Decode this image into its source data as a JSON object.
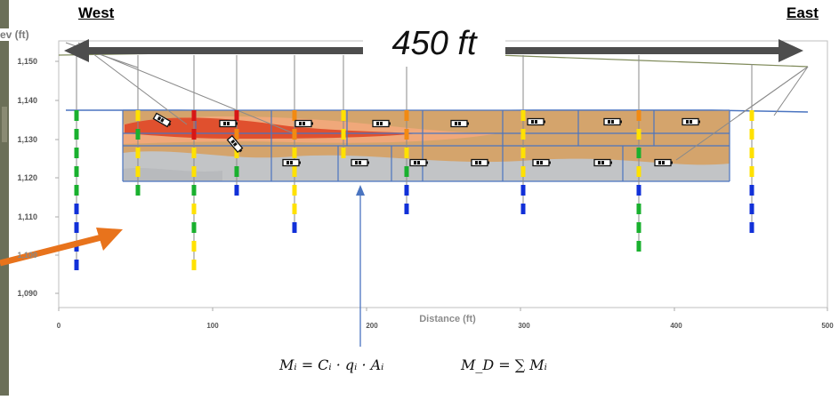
{
  "header": {
    "west_label": "West",
    "east_label": "East",
    "span_label": "450 ft"
  },
  "axes": {
    "y_label": "ev (ft)",
    "x_label": "Distance (ft)",
    "y_ticks": [
      "1,150",
      "1,140",
      "1,130",
      "1,120",
      "1,110",
      "1,100",
      "1,090"
    ],
    "x_ticks": [
      "0",
      "100",
      "200",
      "300",
      "400",
      "500"
    ]
  },
  "equations": {
    "mass": "Mᵢ = Cᵢ · qᵢ · Aᵢ",
    "sum": "M_D = ∑ Mᵢ"
  },
  "colors": {
    "arrow_gray": "#4d4d4d",
    "orange_arrow": "#e8731c",
    "plume_high": "#e0502e",
    "plume_mid": "#f0a87a",
    "plume_tan": "#d4a46c",
    "plume_gray": "#c2c4c6",
    "grid_blue": "#4a74c0",
    "sample_green": "#19b02e",
    "sample_yellow": "#ffe100",
    "sample_blue": "#1130d8",
    "sample_orange": "#f28a12",
    "sample_red": "#d81616"
  },
  "boreholes": [
    {
      "name": "borehole-1",
      "segments": [
        "green",
        "green",
        "green",
        "green",
        "green",
        "blue",
        "blue",
        "blue",
        "blue"
      ]
    },
    {
      "name": "borehole-2",
      "segments": [
        "yellow",
        "green",
        "yellow",
        "yellow",
        "green"
      ]
    },
    {
      "name": "borehole-3",
      "segments": [
        "red",
        "red",
        "yellow",
        "yellow",
        "green",
        "yellow",
        "green",
        "yellow",
        "yellow"
      ]
    },
    {
      "name": "borehole-4",
      "segments": [
        "red",
        "orange",
        "yellow",
        "green",
        "blue"
      ]
    },
    {
      "name": "borehole-5",
      "segments": [
        "orange",
        "orange",
        "yellow",
        "yellow",
        "yellow",
        "yellow",
        "blue"
      ]
    },
    {
      "name": "borehole-6",
      "segments": [
        "yellow",
        "yellow",
        "yellow"
      ]
    },
    {
      "name": "borehole-7",
      "segments": [
        "orange",
        "orange",
        "yellow",
        "green",
        "blue",
        "blue"
      ]
    },
    {
      "name": "borehole-8",
      "segments": [
        "yellow",
        "yellow",
        "yellow",
        "yellow",
        "blue",
        "blue"
      ]
    },
    {
      "name": "borehole-9",
      "segments": [
        "orange",
        "yellow",
        "green",
        "yellow",
        "blue",
        "green",
        "green",
        "green"
      ]
    },
    {
      "name": "borehole-10",
      "segments": [
        "yellow",
        "yellow",
        "yellow",
        "yellow",
        "blue",
        "blue",
        "blue"
      ]
    }
  ]
}
